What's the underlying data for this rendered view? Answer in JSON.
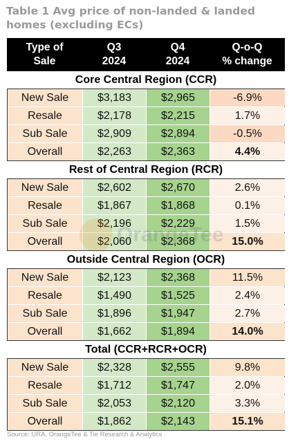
{
  "title": "Table 1 Avg price of non-landed & landed homes (excluding ECs)",
  "headers": [
    "Type of\nSale",
    "Q3\n2024",
    "Q4\n2024",
    "Q-o-Q\n% change"
  ],
  "sections": [
    {
      "name": "Core Central Region (CCR)",
      "rows": [
        [
          "New Sale",
          "$3,183",
          "$2,965",
          "-6.9%"
        ],
        [
          "Resale",
          "$2,178",
          "$2,215",
          "1.7%"
        ],
        [
          "Sub Sale",
          "$2,909",
          "$2,894",
          "-0.5%"
        ],
        [
          "Overall",
          "$2,263",
          "$2,363",
          "4.4%"
        ]
      ]
    },
    {
      "name": "Rest of Central Region (RCR)",
      "rows": [
        [
          "New Sale",
          "$2,602",
          "$2,670",
          "2.6%"
        ],
        [
          "Resale",
          "$1,867",
          "$1,868",
          "0.1%"
        ],
        [
          "Sub Sale",
          "$2,196",
          "$2,229",
          "1.5%"
        ],
        [
          "Overall",
          "$2,060",
          "$2,368",
          "15.0%"
        ]
      ]
    },
    {
      "name": "Outside Central Region (OCR)",
      "rows": [
        [
          "New Sale",
          "$2,123",
          "$2,368",
          "11.5%"
        ],
        [
          "Resale",
          "$1,490",
          "$1,525",
          "2.4%"
        ],
        [
          "Sub Sale",
          "$1,896",
          "$1,947",
          "2.7%"
        ],
        [
          "Overall",
          "$1,662",
          "$1,894",
          "14.0%"
        ]
      ]
    },
    {
      "name": "Total (CCR+RCR+OCR)",
      "rows": [
        [
          "New Sale",
          "$2,328",
          "$2,555",
          "9.8%"
        ],
        [
          "Resale",
          "$1,712",
          "$1,747",
          "2.0%"
        ],
        [
          "Sub Sale",
          "$2,053",
          "$2,120",
          "3.3%"
        ],
        [
          "Overall",
          "$1,862",
          "$2,143",
          "15.1%"
        ]
      ]
    }
  ],
  "source": "Source: URA, OrangeTee & Tie Research & Analytics",
  "watermark": "OrangeTee",
  "colors": {
    "header_bg": "#000000",
    "q3_bg": "#d3e8c6",
    "q4_bg": "#a6d38e",
    "type_bg": "#fbe3cc",
    "brand": "#f08a1c"
  }
}
